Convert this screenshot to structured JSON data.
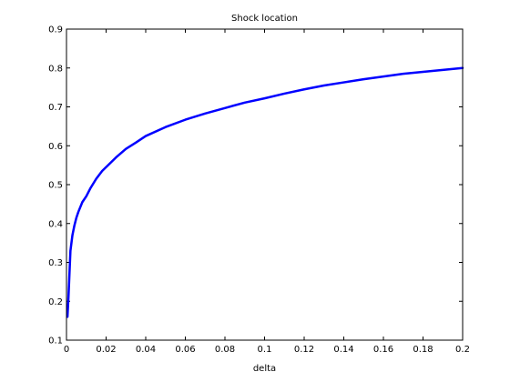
{
  "chart_data": {
    "type": "line",
    "title": "Shock location",
    "xlabel": "delta",
    "ylabel": "",
    "xlim": [
      0,
      0.2
    ],
    "ylim": [
      0.1,
      0.9
    ],
    "xticks": [
      0,
      0.02,
      0.04,
      0.06,
      0.08,
      0.1,
      0.12,
      0.14,
      0.16,
      0.18,
      0.2
    ],
    "xtick_labels": [
      "0",
      "0.02",
      "0.04",
      "0.06",
      "0.08",
      "0.1",
      "0.12",
      "0.14",
      "0.16",
      "0.18",
      "0.2"
    ],
    "yticks": [
      0.1,
      0.2,
      0.3,
      0.4,
      0.5,
      0.6,
      0.7,
      0.8,
      0.9
    ],
    "ytick_labels": [
      "0.1",
      "0.2",
      "0.3",
      "0.4",
      "0.5",
      "0.6",
      "0.7",
      "0.8",
      "0.9"
    ],
    "grid": false,
    "line_color": "#0000ff",
    "series": [
      {
        "x": [
          0.0005,
          0.001,
          0.0015,
          0.002,
          0.003,
          0.004,
          0.005,
          0.006,
          0.008,
          0.01,
          0.012,
          0.015,
          0.018,
          0.02,
          0.025,
          0.03,
          0.035,
          0.04,
          0.05,
          0.06,
          0.07,
          0.08,
          0.09,
          0.1,
          0.11,
          0.12,
          0.13,
          0.14,
          0.15,
          0.16,
          0.17,
          0.18,
          0.19,
          0.2
        ],
        "y": [
          0.16,
          0.21,
          0.27,
          0.33,
          0.37,
          0.395,
          0.415,
          0.43,
          0.455,
          0.47,
          0.49,
          0.515,
          0.535,
          0.545,
          0.57,
          0.592,
          0.608,
          0.625,
          0.648,
          0.667,
          0.683,
          0.697,
          0.711,
          0.722,
          0.734,
          0.745,
          0.755,
          0.763,
          0.771,
          0.778,
          0.785,
          0.79,
          0.795,
          0.8
        ]
      }
    ]
  }
}
